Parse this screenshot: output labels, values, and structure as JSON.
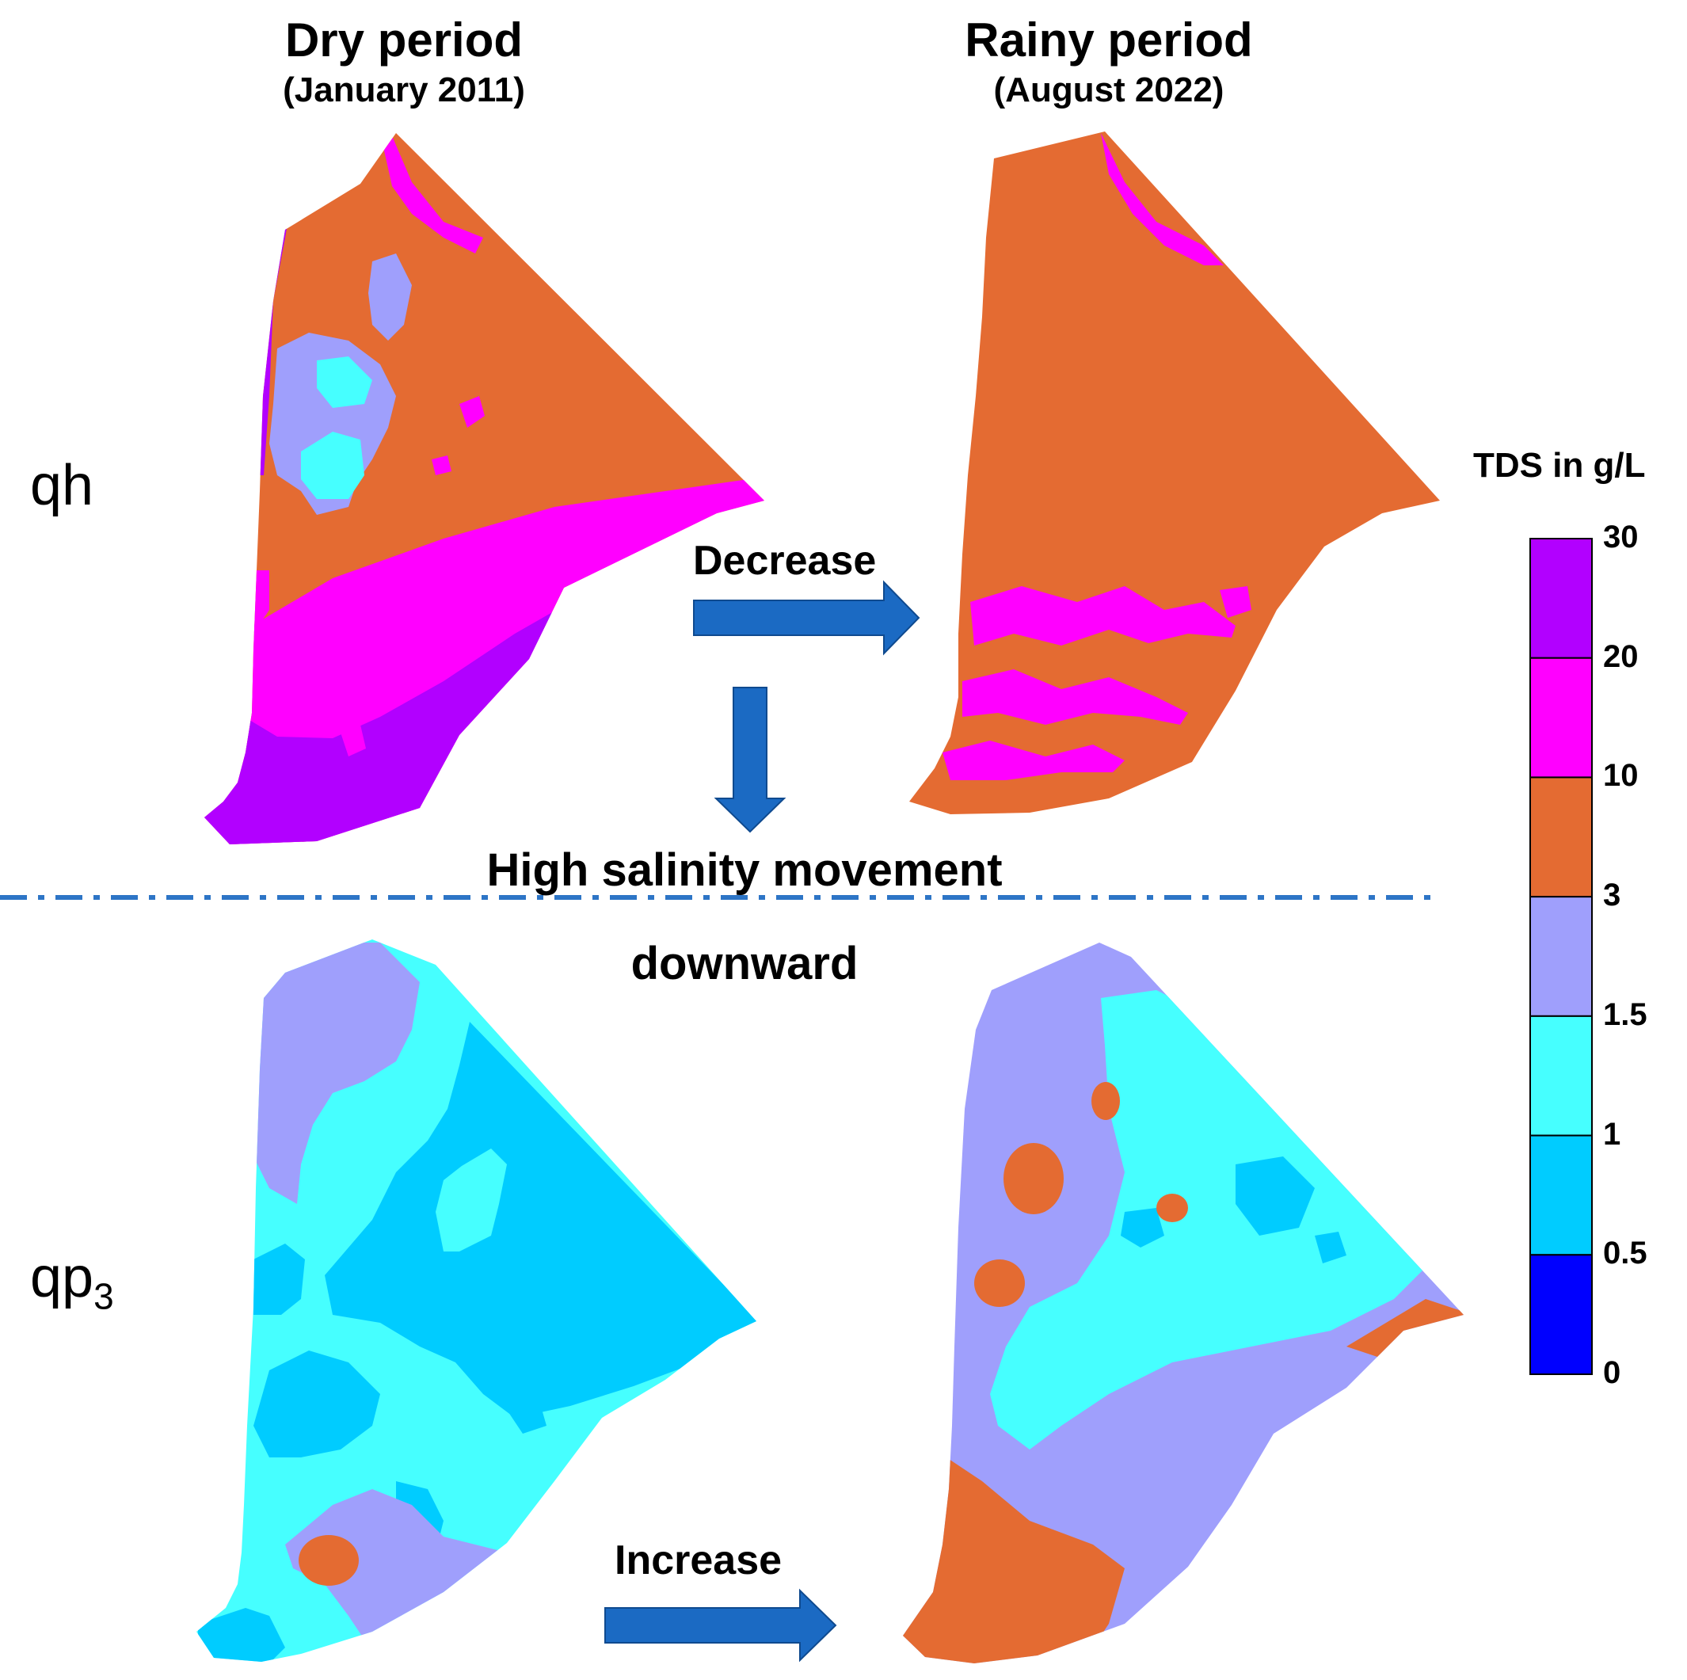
{
  "columns": {
    "dry": {
      "title": "Dry period",
      "subtitle": "(January 2011)"
    },
    "rainy": {
      "title": "Rainy period",
      "subtitle": "(August 2022)"
    }
  },
  "layers": {
    "qh": {
      "label": "qh"
    },
    "qp3": {
      "label_base": "qp",
      "label_sub": "3"
    }
  },
  "trends": {
    "qh": "Decrease",
    "qp3": "Increase"
  },
  "center_note": {
    "line1": "High salinity movement",
    "line2": "downward"
  },
  "legend": {
    "title": "TDS in g/L",
    "ticks": [
      "30",
      "20",
      "10",
      "3",
      "1.5",
      "1",
      "0.5",
      "0"
    ],
    "classes": [
      {
        "range": "20-30",
        "color": "#b200ff"
      },
      {
        "range": "10-20",
        "color": "#ff00ff"
      },
      {
        "range": "3-10",
        "color": "#e46b32"
      },
      {
        "range": "1.5-3",
        "color": "#9f9ffc"
      },
      {
        "range": "1-1.5",
        "color": "#46ffff"
      },
      {
        "range": "0.5-1",
        "color": "#00ccff"
      },
      {
        "range": "0-0.5",
        "color": "#0000ff"
      }
    ]
  },
  "colors": {
    "arrow": "#1b6ac3",
    "divider": "#2d75c6"
  }
}
